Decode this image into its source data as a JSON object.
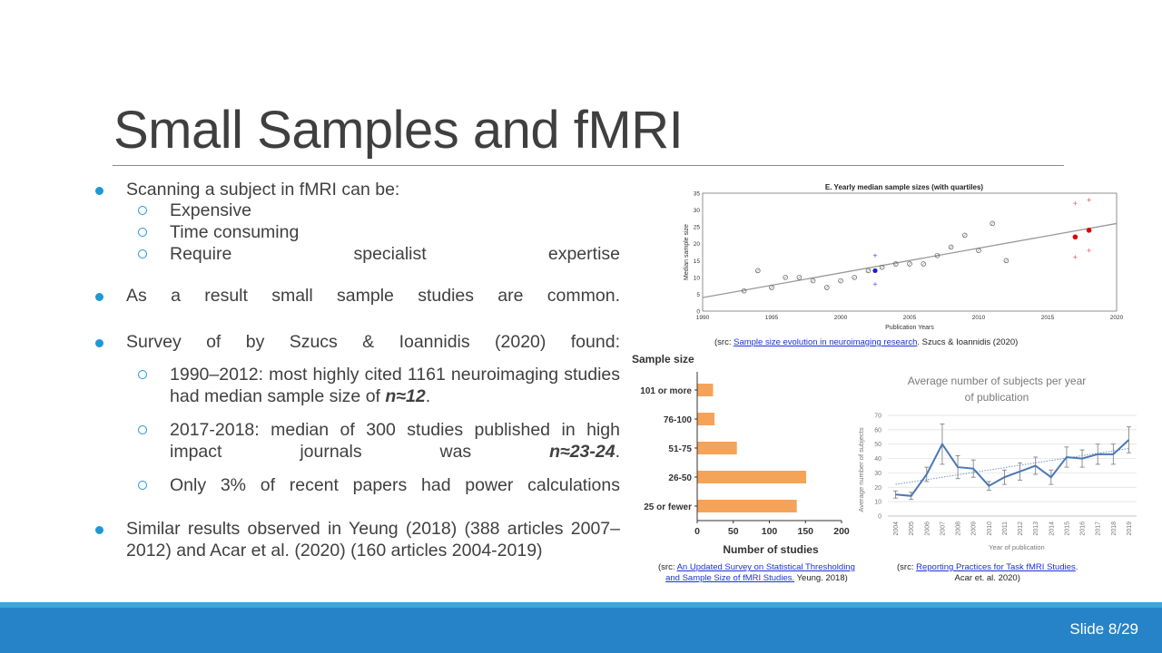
{
  "slide": {
    "title": "Small Samples and fMRI",
    "number_label": "Slide 8/29"
  },
  "bullets": {
    "b1": "Scanning a subject in fMRI can be:",
    "b1_subs": [
      "Expensive",
      "Time consuming",
      "Require specialist expertise"
    ],
    "b2": "As a result small sample studies are common.",
    "b3": "Survey of by Szucs & Ioannidis (2020) found:",
    "b3_sub1": "1990–2012: most highly cited 1161 neuroimaging studies had median sample size of",
    "b3_sub1_em": "n≈12",
    "b3_sub2": "2017-2018: median of 300 studies published in high impact journals was",
    "b3_sub2_em": "n≈23-24",
    "b3_sub3": "Only 3% of recent papers had power calculations",
    "b4": "Similar results observed in Yeung (2018) (388 articles 2007–2012) and Acar et al. (2020) (160 articles 2004-2019)",
    "period": "."
  },
  "captions": {
    "c1_pre": "(src: ",
    "c1_link": "Sample size evolution in neuroimaging research",
    "c1_post": ". Szucs & Ioannidis (2020)",
    "c2_pre": "(src: ",
    "c2_link1": "An Updated Survey on Statistical Thresholding",
    "c2_link2": "and Sample Size of fMRI Studies.",
    "c2_post": " Yeung. 2018)",
    "c3_pre": "(src: ",
    "c3_link": "Reporting Practices for Task fMRI Studies",
    "c3_post": ".",
    "c3_line2": "Acar et. al. 2020)"
  },
  "colors": {
    "accent": "#1f98d8",
    "footer": "#2783c7",
    "bar": "#f6a35a",
    "line_series": "#4a78b4"
  },
  "chart_data": [
    {
      "type": "scatter",
      "title": "E. Yearly median sample sizes (with quartiles)",
      "xlabel": "Publication Years",
      "ylabel": "Median sample size",
      "xlim": [
        1990,
        2020
      ],
      "ylim": [
        0,
        35
      ],
      "xticks": [
        "1990",
        "1995",
        "2000",
        "2005",
        "2010",
        "2015",
        "2020"
      ],
      "yticks": [
        "0",
        "5",
        "10",
        "15",
        "20",
        "25",
        "30",
        "35"
      ],
      "grid": true,
      "series": [
        {
          "x": [
            1993,
            1994,
            1995,
            1996,
            1997,
            1998,
            1999,
            2000,
            2001,
            2002,
            2003,
            2004,
            2005,
            2006,
            2007,
            2008,
            2009,
            2010,
            2011,
            2012
          ],
          "y": [
            6,
            12,
            7,
            10,
            10,
            9,
            7,
            9,
            10,
            12,
            13,
            14,
            14,
            14,
            16.5,
            19,
            22.5,
            18,
            26,
            15
          ]
        },
        {
          "x": [
            2002.5
          ],
          "y": [
            12
          ],
          "q_low": [
            8
          ],
          "q_high": [
            16.5
          ]
        },
        {
          "x": [
            2017,
            2018
          ],
          "y": [
            22,
            24
          ],
          "q_low": [
            16,
            18
          ],
          "q_high": [
            32,
            33
          ]
        }
      ],
      "trend": {
        "x": [
          1990,
          2020
        ],
        "y": [
          4,
          26
        ]
      }
    },
    {
      "type": "bar",
      "orientation": "horizontal",
      "title": "Sample size",
      "xlabel": "Number of studies",
      "categories": [
        "101 or more",
        "76-100",
        "51-75",
        "26-50",
        "25 or fewer"
      ],
      "values": [
        22,
        24,
        55,
        151,
        138
      ],
      "xlim": [
        0,
        200
      ],
      "xticks": [
        "0",
        "50",
        "100",
        "150",
        "200"
      ]
    },
    {
      "type": "line",
      "title": "Average number of subjects per year of publication",
      "xlabel": "Year of publication",
      "ylabel": "Average number of subjects",
      "ylim": [
        0,
        70
      ],
      "yticks": [
        "0",
        "10",
        "20",
        "30",
        "40",
        "50",
        "60",
        "70"
      ],
      "categories": [
        "2004",
        "2005",
        "2006",
        "2007",
        "2008",
        "2009",
        "2010",
        "2011",
        "2012",
        "2013",
        "2014",
        "2015",
        "2016",
        "2017",
        "2018",
        "2019"
      ],
      "values": [
        15,
        14,
        29,
        50,
        34,
        33,
        21,
        27,
        31,
        35,
        27,
        41,
        40,
        43,
        43,
        53
      ],
      "err": [
        2.5,
        2.5,
        5,
        14,
        8,
        6,
        3,
        5,
        6,
        6,
        5,
        7,
        6,
        7,
        7,
        9
      ],
      "trend": {
        "y0": 22,
        "y1": 47
      }
    }
  ]
}
